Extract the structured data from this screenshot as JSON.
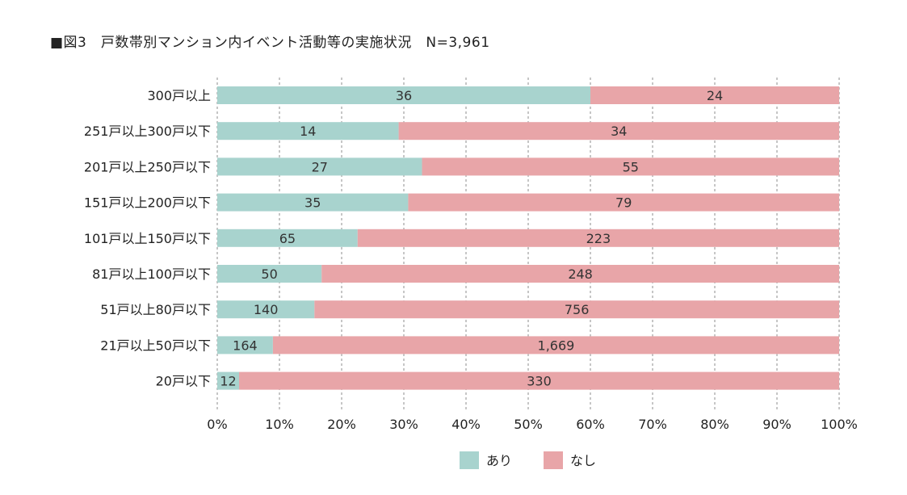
{
  "chart_data": {
    "type": "bar",
    "orientation": "horizontal",
    "stacked": "percent",
    "title": "■図3　戸数帯別マンション内イベント活動等の実施状況　N=3,961",
    "categories": [
      "300戸以上",
      "251戸以上300戸以下",
      "201戸以上250戸以下",
      "151戸以上200戸以下",
      "101戸以上150戸以下",
      "81戸以上100戸以下",
      "51戸以上80戸以下",
      "21戸以上50戸以下",
      "20戸以下"
    ],
    "series": [
      {
        "name": "あり",
        "color": "#a8d3ce",
        "values": [
          36,
          14,
          27,
          35,
          65,
          50,
          140,
          164,
          12
        ],
        "labels": [
          "36",
          "14",
          "27",
          "35",
          "65",
          "50",
          "140",
          "164",
          "12"
        ]
      },
      {
        "name": "なし",
        "color": "#e8a5a8",
        "values": [
          24,
          34,
          55,
          79,
          223,
          248,
          756,
          1669,
          330
        ],
        "labels": [
          "24",
          "34",
          "55",
          "79",
          "223",
          "248",
          "756",
          "1,669",
          "330"
        ]
      }
    ],
    "x_ticks": [
      "0%",
      "10%",
      "20%",
      "30%",
      "40%",
      "50%",
      "60%",
      "70%",
      "80%",
      "90%",
      "100%"
    ],
    "xlim": [
      0,
      100
    ],
    "grid": "vertical dashed",
    "legend_position": "bottom"
  }
}
